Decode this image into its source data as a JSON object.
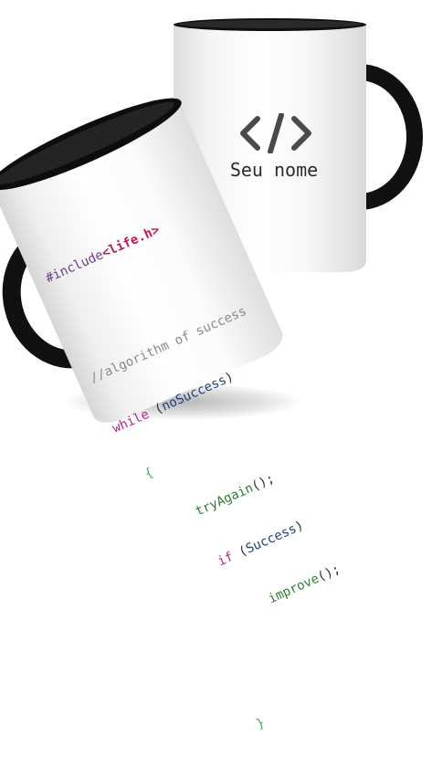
{
  "back_mug": {
    "icon": "code-brackets-icon",
    "name_text": "Seu nome"
  },
  "front_mug": {
    "code_lines": [
      {
        "a": "#include",
        "b": "<life.h>"
      },
      {
        "comment": "//algorithm of success"
      },
      {
        "kw": "while",
        "rest_open": " (",
        "var": "noSuccess",
        "rest_close": ")"
      },
      {
        "brace": "{"
      },
      {
        "fn": "tryAgain",
        "rest": "();"
      },
      {
        "kw": "if",
        "rest_open": " (",
        "var": "Success",
        "rest_close": ")"
      },
      {
        "fn": "improve",
        "rest": "();"
      },
      {
        "brace": "}"
      }
    ]
  },
  "colors": {
    "mug_black": "#111111",
    "include_purple": "#6a3c8c",
    "lib_magenta": "#c2185b",
    "keyword": "#b0268a",
    "variable": "#1f3f7a",
    "function_green": "#2e7d32",
    "comment_gray": "#8a8a8a"
  }
}
